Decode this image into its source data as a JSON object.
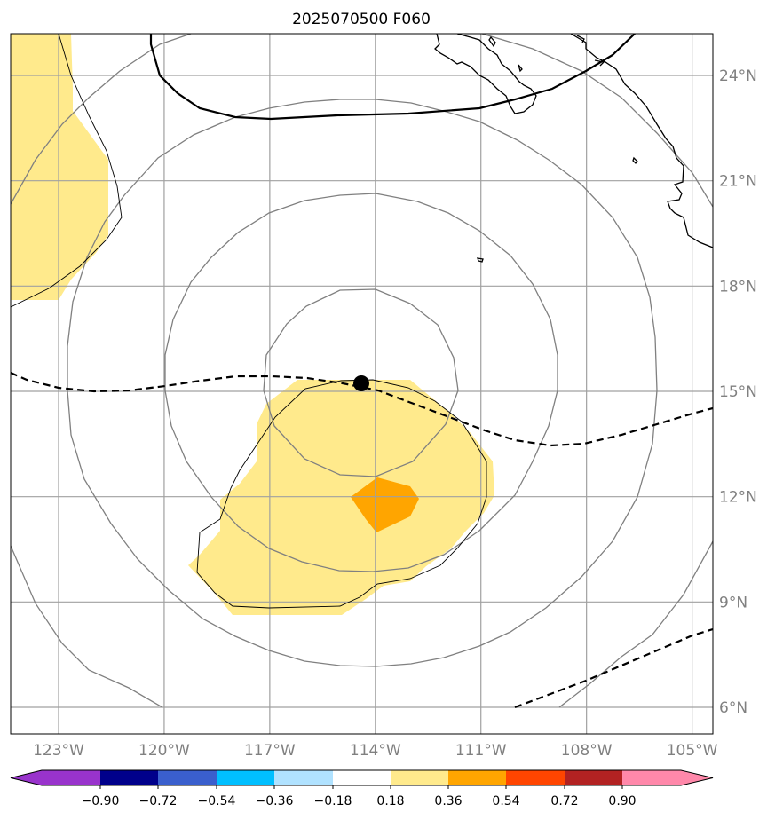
{
  "title": "2025070500 F060",
  "chart_data": {
    "type": "map",
    "projection": "lat-lon",
    "extent": {
      "lon": [
        -125,
        -104.4
      ],
      "lat": [
        5,
        25.2
      ]
    },
    "lon_ticks": [
      {
        "value": -123,
        "label": "123°W"
      },
      {
        "value": -120,
        "label": "120°W"
      },
      {
        "value": -117,
        "label": "117°W"
      },
      {
        "value": -114,
        "label": "114°W"
      },
      {
        "value": -111,
        "label": "111°W"
      },
      {
        "value": -108,
        "label": "108°W"
      },
      {
        "value": -105,
        "label": "105°W"
      }
    ],
    "lat_ticks": [
      {
        "value": 6,
        "label": "6°N"
      },
      {
        "value": 9,
        "label": "9°N"
      },
      {
        "value": 12,
        "label": "12°N"
      },
      {
        "value": 15,
        "label": "15°N"
      },
      {
        "value": 18,
        "label": "18°N"
      },
      {
        "value": 21,
        "label": "21°N"
      },
      {
        "value": 24,
        "label": "24°N"
      }
    ],
    "grid": true,
    "storm_center": {
      "lon": -114.4,
      "lat": 15.2
    },
    "range_rings_deg": [
      2.8,
      5.8,
      8.0,
      11.5
    ],
    "colorbar": {
      "orientation": "horizontal",
      "extend": "both",
      "labels": [
        "−0.90",
        "−0.72",
        "−0.54",
        "−0.36",
        "−0.18",
        "0.18",
        "0.36",
        "0.54",
        "0.72",
        "0.90"
      ],
      "colors": [
        "#9933cc",
        "#00008b",
        "#3a5fcd",
        "#00bfff",
        "#b0e2ff",
        "#ffffff",
        "#ffea8c",
        "#ffa500",
        "#ff4500",
        "#b22222",
        "#ff88aa"
      ]
    },
    "shaded_regions": [
      {
        "level": "0.18–0.36",
        "color": "#ffea8c",
        "area": "west-edge"
      },
      {
        "level": "0.18–0.36",
        "color": "#ffea8c",
        "area": "south-of-center"
      },
      {
        "level": "0.36–0.54",
        "color": "#ffa500",
        "area": "near 12°N 113.8°W"
      }
    ]
  }
}
